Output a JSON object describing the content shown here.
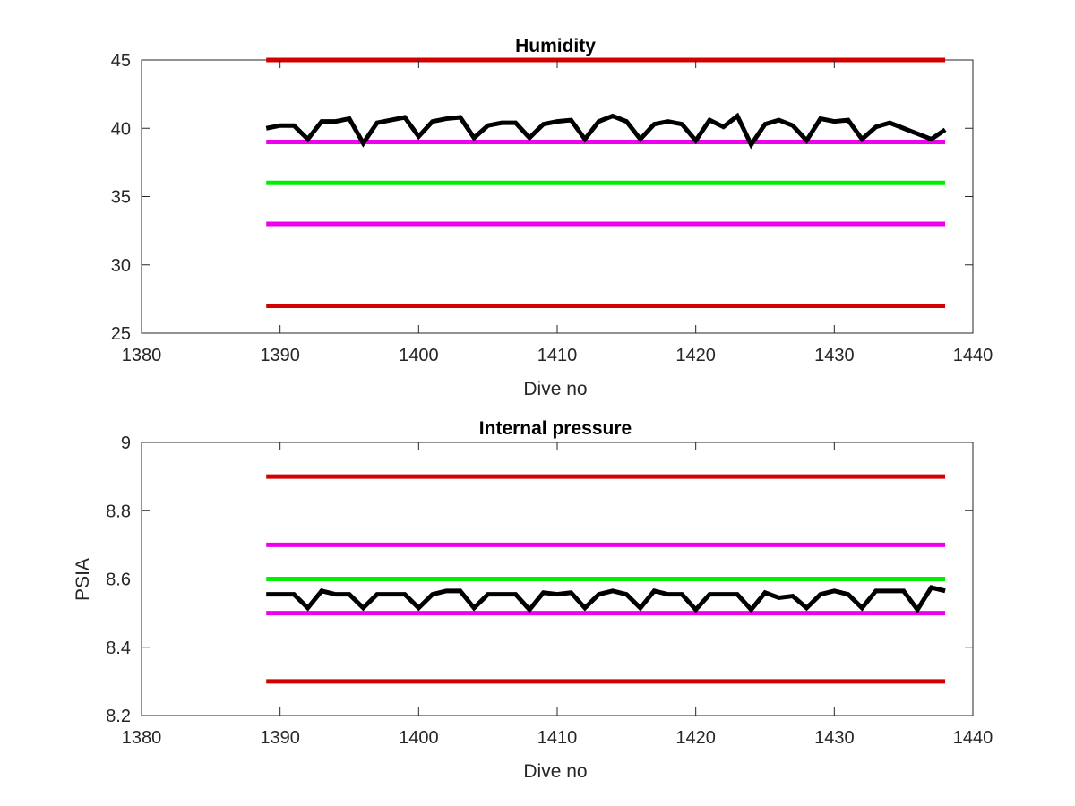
{
  "chart_data": [
    {
      "type": "line",
      "title": "Humidity",
      "xlabel": "Dive no",
      "ylabel": "",
      "xlim": [
        1380,
        1440
      ],
      "ylim": [
        25,
        45
      ],
      "xticks": [
        1380,
        1390,
        1400,
        1410,
        1420,
        1430,
        1440
      ],
      "yticks": [
        25,
        30,
        35,
        40,
        45
      ],
      "grid": false,
      "reference_lines": [
        {
          "y": 45,
          "x_range": [
            1389,
            1438
          ],
          "color": "#d40000"
        },
        {
          "y": 39,
          "x_range": [
            1389,
            1438
          ],
          "color": "#ee00ee"
        },
        {
          "y": 36,
          "x_range": [
            1389,
            1438
          ],
          "color": "#00ee00"
        },
        {
          "y": 33,
          "x_range": [
            1389,
            1438
          ],
          "color": "#ee00ee"
        },
        {
          "y": 27,
          "x_range": [
            1389,
            1438
          ],
          "color": "#d40000"
        }
      ],
      "series": [
        {
          "color": "#000000",
          "x": [
            1389,
            1390,
            1391,
            1392,
            1393,
            1394,
            1395,
            1396,
            1397,
            1398,
            1399,
            1400,
            1401,
            1402,
            1403,
            1404,
            1405,
            1406,
            1407,
            1408,
            1409,
            1410,
            1411,
            1412,
            1413,
            1414,
            1415,
            1416,
            1417,
            1418,
            1419,
            1420,
            1421,
            1422,
            1423,
            1424,
            1425,
            1426,
            1427,
            1428,
            1429,
            1430,
            1431,
            1432,
            1433,
            1434,
            1435,
            1436,
            1437,
            1438
          ],
          "values": [
            40.0,
            40.2,
            40.2,
            39.2,
            40.5,
            40.5,
            40.7,
            38.9,
            40.4,
            40.6,
            40.8,
            39.4,
            40.5,
            40.7,
            40.8,
            39.3,
            40.2,
            40.4,
            40.4,
            39.3,
            40.3,
            40.5,
            40.6,
            39.2,
            40.5,
            40.9,
            40.5,
            39.2,
            40.3,
            40.5,
            40.3,
            39.1,
            40.6,
            40.1,
            40.9,
            38.8,
            40.3,
            40.6,
            40.2,
            39.1,
            40.7,
            40.5,
            40.6,
            39.2,
            40.1,
            40.4,
            40.0,
            39.6,
            39.2,
            39.9
          ]
        }
      ]
    },
    {
      "type": "line",
      "title": "Internal pressure",
      "xlabel": "Dive no",
      "ylabel": "PSIA",
      "xlim": [
        1380,
        1440
      ],
      "ylim": [
        8.2,
        9
      ],
      "xticks": [
        1380,
        1390,
        1400,
        1410,
        1420,
        1430,
        1440
      ],
      "yticks": [
        8.2,
        8.4,
        8.6,
        8.8,
        9
      ],
      "grid": false,
      "reference_lines": [
        {
          "y": 8.9,
          "x_range": [
            1389,
            1438
          ],
          "color": "#d40000"
        },
        {
          "y": 8.7,
          "x_range": [
            1389,
            1438
          ],
          "color": "#ee00ee"
        },
        {
          "y": 8.6,
          "x_range": [
            1389,
            1438
          ],
          "color": "#00ee00"
        },
        {
          "y": 8.5,
          "x_range": [
            1389,
            1438
          ],
          "color": "#ee00ee"
        },
        {
          "y": 8.3,
          "x_range": [
            1389,
            1438
          ],
          "color": "#d40000"
        }
      ],
      "series": [
        {
          "color": "#000000",
          "x": [
            1389,
            1390,
            1391,
            1392,
            1393,
            1394,
            1395,
            1396,
            1397,
            1398,
            1399,
            1400,
            1401,
            1402,
            1403,
            1404,
            1405,
            1406,
            1407,
            1408,
            1409,
            1410,
            1411,
            1412,
            1413,
            1414,
            1415,
            1416,
            1417,
            1418,
            1419,
            1420,
            1421,
            1422,
            1423,
            1424,
            1425,
            1426,
            1427,
            1428,
            1429,
            1430,
            1431,
            1432,
            1433,
            1434,
            1435,
            1436,
            1437,
            1438
          ],
          "values": [
            8.555,
            8.555,
            8.555,
            8.515,
            8.565,
            8.555,
            8.555,
            8.515,
            8.555,
            8.555,
            8.555,
            8.515,
            8.555,
            8.565,
            8.565,
            8.515,
            8.555,
            8.555,
            8.555,
            8.51,
            8.56,
            8.555,
            8.56,
            8.515,
            8.555,
            8.565,
            8.555,
            8.515,
            8.565,
            8.555,
            8.555,
            8.51,
            8.555,
            8.555,
            8.555,
            8.51,
            8.56,
            8.545,
            8.55,
            8.515,
            8.555,
            8.565,
            8.555,
            8.515,
            8.565,
            8.565,
            8.565,
            8.51,
            8.575,
            8.565
          ]
        }
      ]
    }
  ]
}
